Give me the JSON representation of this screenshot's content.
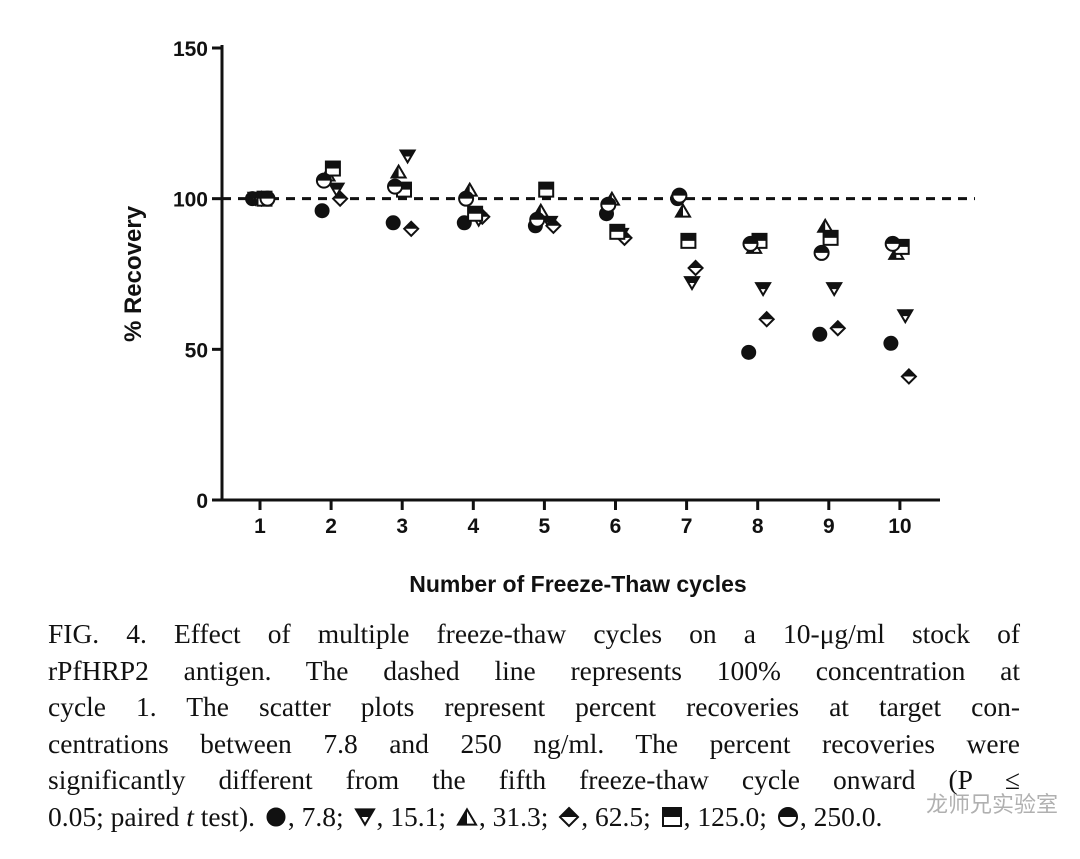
{
  "chart_data": {
    "type": "scatter",
    "xlabel": "Number of Freeze-Thaw cycles",
    "ylabel": "% Recovery",
    "xticks": [
      "1",
      "2",
      "3",
      "4",
      "5",
      "6",
      "7",
      "8",
      "9",
      "10"
    ],
    "yticks": [
      "0",
      "50",
      "100",
      "150"
    ],
    "ylim": [
      0,
      150
    ],
    "reference_line": {
      "y": 100,
      "style": "dashed"
    },
    "series": [
      {
        "name": "7.8",
        "marker": "filled-circle",
        "values": [
          100,
          96,
          92,
          92,
          91,
          95,
          100,
          49,
          55,
          52
        ]
      },
      {
        "name": "15.1",
        "marker": "down-triangle",
        "values": [
          100,
          103,
          114,
          93,
          92,
          88,
          72,
          70,
          70,
          61
        ]
      },
      {
        "name": "31.3",
        "marker": "up-triangle",
        "values": [
          100,
          108,
          109,
          103,
          96,
          100,
          96,
          84,
          91,
          82
        ]
      },
      {
        "name": "62.5",
        "marker": "half-diamond",
        "values": [
          100,
          100,
          90,
          94,
          91,
          87,
          77,
          60,
          57,
          41
        ]
      },
      {
        "name": "125.0",
        "marker": "half-square",
        "values": [
          100,
          110,
          103,
          95,
          103,
          89,
          86,
          86,
          87,
          84
        ]
      },
      {
        "name": "250.0",
        "marker": "half-circle",
        "values": [
          100,
          106,
          104,
          100,
          93,
          98,
          101,
          85,
          82,
          85
        ]
      }
    ]
  },
  "caption": {
    "lines": [
      "FIG.  4.  Effect of multiple freeze-thaw cycles on a 10-μg/ml stock of",
      "rPfHRP2 antigen. The dashed line represents 100% concentration at",
      "cycle 1. The scatter plots represent percent recoveries at target con-",
      "centrations between 7.8 and 250 ng/ml. The percent recoveries were",
      "significantly different from the fifth freeze-thaw cycle onward (P ≤"
    ],
    "last_prefix": "0.05; paired ",
    "last_italic": "t",
    "last_after": " test).",
    "legend": [
      {
        "icon": "filled-circle",
        "label": ", 7.8;"
      },
      {
        "icon": "down-triangle",
        "label": ", 15.1;"
      },
      {
        "icon": "up-triangle",
        "label": ", 31.3;"
      },
      {
        "icon": "half-diamond",
        "label": ", 62.5;"
      },
      {
        "icon": "half-square",
        "label": ", 125.0;"
      },
      {
        "icon": "half-circle",
        "label": ", 250.0."
      }
    ]
  },
  "watermark": "龙师兄实验室"
}
